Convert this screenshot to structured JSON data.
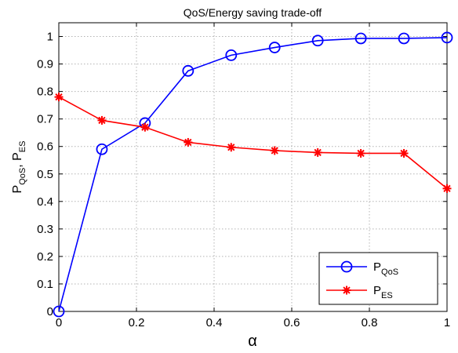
{
  "chart_data": {
    "type": "line",
    "title": "QoS/Energy saving trade-off",
    "xlabel": "α",
    "ylabel": {
      "base1": "P",
      "sub1": "QoS",
      "sep": ", ",
      "base2": "P",
      "sub2": "ES"
    },
    "xlim": [
      0,
      1
    ],
    "ylim": [
      0,
      1.05
    ],
    "xticks": [
      0,
      0.2,
      0.4,
      0.6,
      0.8,
      1
    ],
    "xtick_labels": [
      "0",
      "0.2",
      "0.4",
      "0.6",
      "0.8",
      "1"
    ],
    "yticks": [
      0,
      0.1,
      0.2,
      0.3,
      0.4,
      0.5,
      0.6,
      0.7,
      0.8,
      0.9,
      1
    ],
    "ytick_labels": [
      "0",
      "0.1",
      "0.2",
      "0.3",
      "0.4",
      "0.5",
      "0.6",
      "0.7",
      "0.8",
      "0.9",
      "1"
    ],
    "grid": true,
    "legend_position": "bottom-right",
    "x": [
      0,
      0.111,
      0.222,
      0.333,
      0.444,
      0.556,
      0.667,
      0.778,
      0.889,
      1
    ],
    "series": [
      {
        "name": "P_QoS",
        "label_base": "P",
        "label_sub": "QoS",
        "color": "#0000ff",
        "marker": "circle",
        "values": [
          0.0,
          0.59,
          0.685,
          0.875,
          0.932,
          0.96,
          0.985,
          0.993,
          0.993,
          0.996
        ]
      },
      {
        "name": "P_ES",
        "label_base": "P",
        "label_sub": "ES",
        "color": "#ff0000",
        "marker": "asterisk",
        "values": [
          0.78,
          0.695,
          0.67,
          0.615,
          0.597,
          0.585,
          0.578,
          0.575,
          0.575,
          0.447
        ]
      }
    ]
  }
}
